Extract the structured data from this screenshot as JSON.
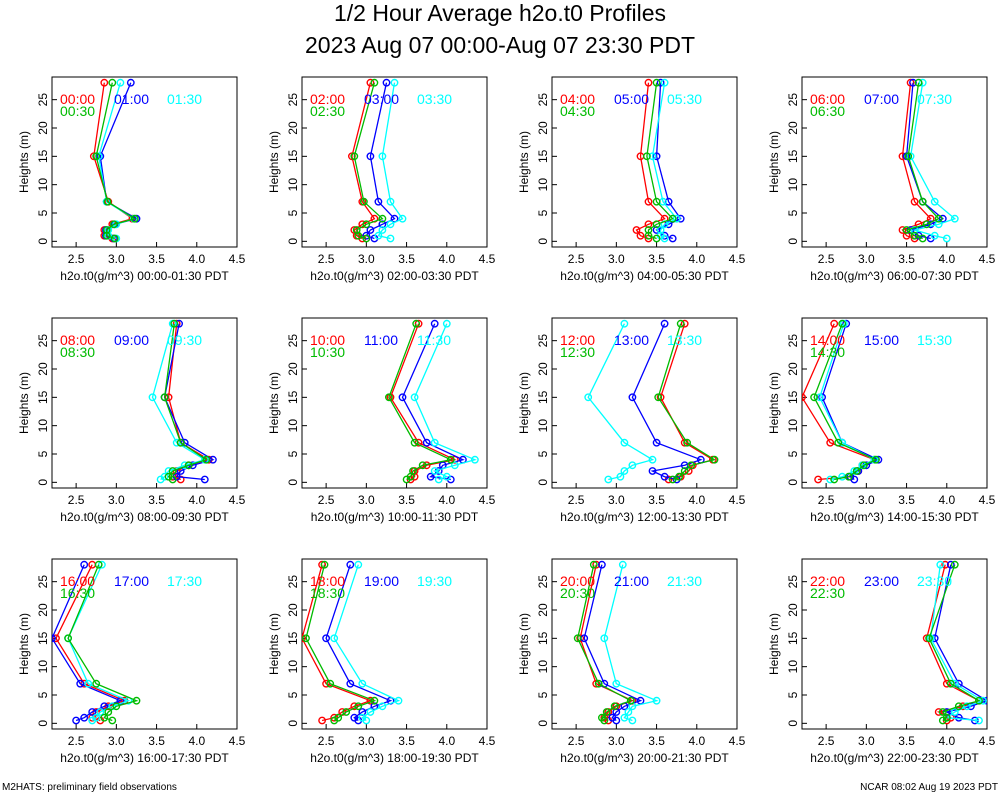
{
  "title": "1/2 Hour Average h2o.t0 Profiles",
  "subtitle": "2023 Aug 07 00:00-Aug 07 23:30 PDT",
  "footer_left": "M2HATS: preliminary field observations",
  "footer_right": "NCAR 08:02 Aug 19 2023 PDT",
  "colors": [
    "#ff0000",
    "#0000ff",
    "#00ffff",
    "#00bb00"
  ],
  "chart_data": [
    {
      "type": "line",
      "xlabel": "h2o.t0(g/m^3) 00:00-01:30 PDT",
      "ylabel": "Heights (m)",
      "xlim": [
        2.2,
        4.5
      ],
      "ylim": [
        -1,
        29
      ],
      "xticks": [
        2.5,
        3.0,
        3.5,
        4.0,
        4.5
      ],
      "yticks": [
        0,
        5,
        10,
        15,
        20,
        25
      ],
      "heights": [
        0.5,
        1,
        2,
        3,
        4,
        7,
        15,
        28
      ],
      "series": [
        {
          "name": "00:00",
          "color": "#ff0000",
          "x": [
            2.95,
            2.85,
            2.85,
            2.95,
            3.2,
            2.9,
            2.72,
            2.85
          ]
        },
        {
          "name": "01:00",
          "color": "#0000ff",
          "x": [
            2.97,
            2.87,
            2.87,
            2.98,
            3.25,
            2.88,
            2.8,
            3.18
          ]
        },
        {
          "name": "01:30",
          "color": "#00ffff",
          "x": [
            3.0,
            2.9,
            2.9,
            3.0,
            3.22,
            2.88,
            2.78,
            3.05
          ]
        },
        {
          "name": "00:30",
          "color": "#00bb00",
          "x": [
            2.98,
            2.88,
            2.88,
            2.97,
            3.23,
            2.89,
            2.75,
            2.95
          ]
        }
      ]
    },
    {
      "type": "line",
      "xlabel": "h2o.t0(g/m^3) 02:00-03:30 PDT",
      "ylabel": "Heights (m)",
      "xlim": [
        2.2,
        4.5
      ],
      "ylim": [
        -1,
        29
      ],
      "xticks": [
        2.5,
        3.0,
        3.5,
        4.0,
        4.5
      ],
      "yticks": [
        0,
        5,
        10,
        15,
        20,
        25
      ],
      "heights": [
        0.5,
        1,
        2,
        3,
        4,
        7,
        15,
        28
      ],
      "series": [
        {
          "name": "02:00",
          "color": "#ff0000",
          "x": [
            2.95,
            2.88,
            2.85,
            2.95,
            3.1,
            2.95,
            2.82,
            3.05
          ]
        },
        {
          "name": "03:00",
          "color": "#0000ff",
          "x": [
            3.1,
            3.0,
            3.05,
            3.2,
            3.35,
            3.15,
            3.05,
            3.25
          ]
        },
        {
          "name": "03:30",
          "color": "#00ffff",
          "x": [
            3.3,
            3.15,
            3.2,
            3.3,
            3.45,
            3.3,
            3.2,
            3.35
          ]
        },
        {
          "name": "02:30",
          "color": "#00bb00",
          "x": [
            3.0,
            2.9,
            2.88,
            3.0,
            3.2,
            2.97,
            2.85,
            3.1
          ]
        }
      ]
    },
    {
      "type": "line",
      "xlabel": "h2o.t0(g/m^3) 04:00-05:30 PDT",
      "ylabel": "Heights (m)",
      "xlim": [
        2.2,
        4.5
      ],
      "ylim": [
        -1,
        29
      ],
      "xticks": [
        2.5,
        3.0,
        3.5,
        4.0,
        4.5
      ],
      "yticks": [
        0,
        5,
        10,
        15,
        20,
        25
      ],
      "heights": [
        0.5,
        1,
        2,
        3,
        4,
        7,
        15,
        28
      ],
      "series": [
        {
          "name": "04:00",
          "color": "#ff0000",
          "x": [
            3.4,
            3.3,
            3.25,
            3.4,
            3.6,
            3.4,
            3.3,
            3.4
          ]
        },
        {
          "name": "05:00",
          "color": "#0000ff",
          "x": [
            3.7,
            3.6,
            3.5,
            3.65,
            3.8,
            3.65,
            3.5,
            3.55
          ]
        },
        {
          "name": "05:30",
          "color": "#00ffff",
          "x": [
            3.6,
            3.55,
            3.55,
            3.6,
            3.75,
            3.58,
            3.45,
            3.6
          ]
        },
        {
          "name": "04:30",
          "color": "#00bb00",
          "x": [
            3.5,
            3.4,
            3.4,
            3.5,
            3.7,
            3.5,
            3.38,
            3.5
          ]
        }
      ]
    },
    {
      "type": "line",
      "xlabel": "h2o.t0(g/m^3) 06:00-07:30 PDT",
      "ylabel": "Heights (m)",
      "xlim": [
        2.2,
        4.5
      ],
      "ylim": [
        -1,
        29
      ],
      "xticks": [
        2.5,
        3.0,
        3.5,
        4.0,
        4.5
      ],
      "yticks": [
        0,
        5,
        10,
        15,
        20,
        25
      ],
      "heights": [
        0.5,
        1,
        2,
        3,
        4,
        7,
        15,
        28
      ],
      "series": [
        {
          "name": "06:00",
          "color": "#ff0000",
          "x": [
            3.6,
            3.5,
            3.45,
            3.65,
            3.8,
            3.6,
            3.45,
            3.55
          ]
        },
        {
          "name": "07:00",
          "color": "#0000ff",
          "x": [
            3.8,
            3.65,
            3.55,
            3.8,
            3.95,
            3.7,
            3.5,
            3.58
          ]
        },
        {
          "name": "07:30",
          "color": "#00ffff",
          "x": [
            4.0,
            3.85,
            3.6,
            3.9,
            4.1,
            3.85,
            3.55,
            3.7
          ]
        },
        {
          "name": "06:30",
          "color": "#00bb00",
          "x": [
            3.7,
            3.6,
            3.5,
            3.75,
            3.9,
            3.7,
            3.52,
            3.65
          ]
        }
      ]
    },
    {
      "type": "line",
      "xlabel": "h2o.t0(g/m^3) 08:00-09:30 PDT",
      "ylabel": "Heights (m)",
      "xlim": [
        2.2,
        4.5
      ],
      "ylim": [
        -1,
        29
      ],
      "xticks": [
        2.5,
        3.0,
        3.5,
        4.0,
        4.5
      ],
      "yticks": [
        0,
        5,
        10,
        15,
        20,
        25
      ],
      "heights": [
        0.5,
        1,
        2,
        3,
        4,
        7,
        15,
        28
      ],
      "series": [
        {
          "name": "08:00",
          "color": "#ff0000",
          "x": [
            3.8,
            3.7,
            3.75,
            3.9,
            4.15,
            3.8,
            3.65,
            3.75
          ]
        },
        {
          "name": "09:00",
          "color": "#0000ff",
          "x": [
            4.1,
            3.75,
            3.8,
            3.95,
            4.2,
            3.85,
            3.6,
            3.78
          ]
        },
        {
          "name": "09:30",
          "color": "#00ffff",
          "x": [
            3.55,
            3.6,
            3.65,
            3.85,
            4.1,
            3.75,
            3.45,
            3.7
          ]
        },
        {
          "name": "08:30",
          "color": "#00bb00",
          "x": [
            3.7,
            3.65,
            3.7,
            3.9,
            4.12,
            3.8,
            3.6,
            3.72
          ]
        }
      ]
    },
    {
      "type": "line",
      "xlabel": "h2o.t0(g/m^3) 10:00-11:30 PDT",
      "ylabel": "Heights (m)",
      "xlim": [
        2.2,
        4.5
      ],
      "ylim": [
        -1,
        29
      ],
      "xticks": [
        2.5,
        3.0,
        3.5,
        4.0,
        4.5
      ],
      "yticks": [
        0,
        5,
        10,
        15,
        20,
        25
      ],
      "heights": [
        0.5,
        1,
        2,
        3,
        4,
        7,
        15,
        28
      ],
      "series": [
        {
          "name": "10:00",
          "color": "#ff0000",
          "x": [
            3.55,
            3.6,
            3.6,
            3.75,
            4.1,
            3.65,
            3.3,
            3.65
          ]
        },
        {
          "name": "11:00",
          "color": "#0000ff",
          "x": [
            4.05,
            3.8,
            3.9,
            3.95,
            4.2,
            3.75,
            3.45,
            3.85
          ]
        },
        {
          "name": "11:30",
          "color": "#00ffff",
          "x": [
            3.9,
            4.0,
            3.85,
            4.1,
            4.35,
            3.85,
            3.6,
            4.0
          ]
        },
        {
          "name": "10:30",
          "color": "#00bb00",
          "x": [
            3.5,
            3.55,
            3.58,
            3.7,
            4.05,
            3.6,
            3.28,
            3.62
          ]
        }
      ]
    },
    {
      "type": "line",
      "xlabel": "h2o.t0(g/m^3) 12:00-13:30 PDT",
      "ylabel": "Heights (m)",
      "xlim": [
        2.2,
        4.5
      ],
      "ylim": [
        -1,
        29
      ],
      "xticks": [
        2.5,
        3.0,
        3.5,
        4.0,
        4.5
      ],
      "yticks": [
        0,
        5,
        10,
        15,
        20,
        25
      ],
      "heights": [
        0.5,
        1,
        2,
        3,
        4,
        7,
        15,
        28
      ],
      "series": [
        {
          "name": "12:00",
          "color": "#ff0000",
          "x": [
            3.65,
            3.8,
            3.9,
            3.95,
            4.2,
            3.85,
            3.55,
            3.85
          ]
        },
        {
          "name": "13:00",
          "color": "#0000ff",
          "x": [
            3.75,
            3.6,
            3.45,
            3.85,
            4.05,
            3.5,
            3.2,
            3.6
          ]
        },
        {
          "name": "13:30",
          "color": "#00ffff",
          "x": [
            2.9,
            3.05,
            3.1,
            3.2,
            3.45,
            3.1,
            2.65,
            3.1
          ]
        },
        {
          "name": "12:30",
          "color": "#00bb00",
          "x": [
            3.7,
            3.78,
            3.85,
            3.93,
            4.22,
            3.88,
            3.52,
            3.8
          ]
        }
      ]
    },
    {
      "type": "line",
      "xlabel": "h2o.t0(g/m^3) 14:00-15:30 PDT",
      "ylabel": "Heights (m)",
      "xlim": [
        2.2,
        4.5
      ],
      "ylim": [
        -1,
        29
      ],
      "xticks": [
        2.5,
        3.0,
        3.5,
        4.0,
        4.5
      ],
      "yticks": [
        0,
        5,
        10,
        15,
        20,
        25
      ],
      "heights": [
        0.5,
        1,
        2,
        3,
        4,
        7,
        15,
        28
      ],
      "series": [
        {
          "name": "14:00",
          "color": "#ff0000",
          "x": [
            2.4,
            2.8,
            2.9,
            2.95,
            3.1,
            2.55,
            2.2,
            2.6
          ]
        },
        {
          "name": "15:00",
          "color": "#0000ff",
          "x": [
            2.85,
            2.8,
            2.9,
            3.0,
            3.15,
            2.7,
            2.45,
            2.75
          ]
        },
        {
          "name": "15:30",
          "color": "#00ffff",
          "x": [
            2.55,
            2.7,
            2.85,
            2.95,
            3.1,
            2.7,
            2.42,
            2.72
          ]
        },
        {
          "name": "14:30",
          "color": "#00bb00",
          "x": [
            2.6,
            2.78,
            2.88,
            2.97,
            3.12,
            2.65,
            2.35,
            2.7
          ]
        }
      ]
    },
    {
      "type": "line",
      "xlabel": "h2o.t0(g/m^3) 16:00-17:30 PDT",
      "ylabel": "Heights (m)",
      "xlim": [
        2.2,
        4.5
      ],
      "ylim": [
        -1,
        29
      ],
      "xticks": [
        2.5,
        3.0,
        3.5,
        4.0,
        4.5
      ],
      "yticks": [
        0,
        5,
        10,
        15,
        20,
        25
      ],
      "heights": [
        0.5,
        1,
        2,
        3,
        4,
        7,
        15,
        28
      ],
      "series": [
        {
          "name": "16:00",
          "color": "#ff0000",
          "x": [
            2.8,
            2.7,
            2.75,
            2.9,
            3.1,
            2.6,
            2.25,
            2.7
          ]
        },
        {
          "name": "17:00",
          "color": "#0000ff",
          "x": [
            2.5,
            2.6,
            2.7,
            2.85,
            3.05,
            2.55,
            2.2,
            2.6
          ]
        },
        {
          "name": "17:30",
          "color": "#00ffff",
          "x": [
            2.7,
            2.75,
            2.8,
            2.95,
            3.15,
            2.65,
            2.4,
            2.82
          ]
        },
        {
          "name": "16:30",
          "color": "#00bb00",
          "x": [
            2.95,
            2.85,
            2.9,
            3.0,
            3.25,
            2.75,
            2.4,
            2.78
          ]
        }
      ]
    },
    {
      "type": "line",
      "xlabel": "h2o.t0(g/m^3) 18:00-19:30 PDT",
      "ylabel": "Heights (m)",
      "xlim": [
        2.2,
        4.5
      ],
      "ylim": [
        -1,
        29
      ],
      "xticks": [
        2.5,
        3.0,
        3.5,
        4.0,
        4.5
      ],
      "yticks": [
        0,
        5,
        10,
        15,
        20,
        25
      ],
      "heights": [
        0.5,
        1,
        2,
        3,
        4,
        7,
        15,
        28
      ],
      "series": [
        {
          "name": "18:00",
          "color": "#ff0000",
          "x": [
            2.45,
            2.6,
            2.7,
            2.85,
            3.05,
            2.5,
            2.2,
            2.45
          ]
        },
        {
          "name": "19:00",
          "color": "#0000ff",
          "x": [
            2.9,
            2.85,
            2.95,
            3.1,
            3.3,
            2.8,
            2.5,
            2.8
          ]
        },
        {
          "name": "19:30",
          "color": "#00ffff",
          "x": [
            3.0,
            2.95,
            3.05,
            3.2,
            3.4,
            2.95,
            2.6,
            2.9
          ]
        },
        {
          "name": "18:30",
          "color": "#00bb00",
          "x": [
            2.6,
            2.65,
            2.75,
            2.9,
            3.1,
            2.55,
            2.25,
            2.48
          ]
        }
      ]
    },
    {
      "type": "line",
      "xlabel": "h2o.t0(g/m^3) 20:00-21:30 PDT",
      "ylabel": "Heights (m)",
      "xlim": [
        2.2,
        4.5
      ],
      "ylim": [
        -1,
        29
      ],
      "xticks": [
        2.5,
        3.0,
        3.5,
        4.0,
        4.5
      ],
      "yticks": [
        0,
        5,
        10,
        15,
        20,
        25
      ],
      "heights": [
        0.5,
        1,
        2,
        3,
        4,
        7,
        15,
        28
      ],
      "series": [
        {
          "name": "20:00",
          "color": "#ff0000",
          "x": [
            2.9,
            2.85,
            2.9,
            3.0,
            3.2,
            2.75,
            2.55,
            2.75
          ]
        },
        {
          "name": "21:00",
          "color": "#0000ff",
          "x": [
            3.0,
            2.95,
            3.0,
            3.1,
            3.3,
            2.85,
            2.6,
            2.82
          ]
        },
        {
          "name": "21:30",
          "color": "#00ffff",
          "x": [
            3.2,
            3.1,
            3.15,
            3.2,
            3.5,
            3.0,
            2.85,
            3.08
          ]
        },
        {
          "name": "20:30",
          "color": "#00bb00",
          "x": [
            2.85,
            2.82,
            2.88,
            2.98,
            3.18,
            2.78,
            2.52,
            2.72
          ]
        }
      ]
    },
    {
      "type": "line",
      "xlabel": "h2o.t0(g/m^3) 22:00-23:30 PDT",
      "ylabel": "Heights (m)",
      "xlim": [
        2.2,
        4.5
      ],
      "ylim": [
        -1,
        29
      ],
      "xticks": [
        2.5,
        3.0,
        3.5,
        4.0,
        4.5
      ],
      "yticks": [
        0,
        5,
        10,
        15,
        20,
        25
      ],
      "heights": [
        0.5,
        1,
        2,
        3,
        4,
        7,
        15,
        28
      ],
      "series": [
        {
          "name": "22:00",
          "color": "#ff0000",
          "x": [
            4.0,
            4.05,
            3.9,
            4.2,
            4.4,
            4.0,
            3.75,
            3.98
          ]
        },
        {
          "name": "23:00",
          "color": "#0000ff",
          "x": [
            4.35,
            4.15,
            4.0,
            4.3,
            4.5,
            4.15,
            3.85,
            4.05
          ]
        },
        {
          "name": "23:30",
          "color": "#00ffff",
          "x": [
            4.4,
            4.0,
            4.1,
            4.25,
            4.45,
            4.1,
            3.8,
            3.92
          ]
        },
        {
          "name": "22:30",
          "color": "#00bb00",
          "x": [
            3.95,
            4.0,
            3.95,
            4.15,
            4.4,
            4.05,
            3.78,
            4.1
          ]
        }
      ]
    }
  ]
}
